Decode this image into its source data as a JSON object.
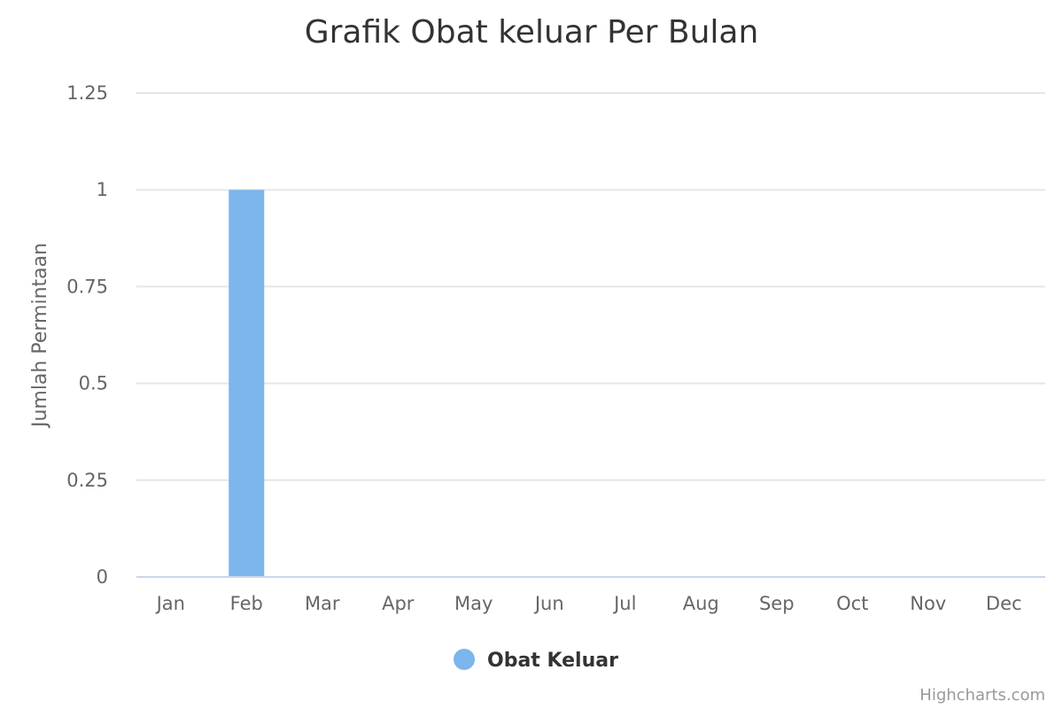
{
  "chart_data": {
    "type": "bar",
    "title": "Grafik Obat keluar Per Bulan",
    "xlabel": "",
    "ylabel": "Jumlah Permintaan",
    "categories": [
      "Jan",
      "Feb",
      "Mar",
      "Apr",
      "May",
      "Jun",
      "Jul",
      "Aug",
      "Sep",
      "Oct",
      "Nov",
      "Dec"
    ],
    "series": [
      {
        "name": "Obat Keluar",
        "values": [
          0,
          1,
          0,
          0,
          0,
          0,
          0,
          0,
          0,
          0,
          0,
          0
        ],
        "color": "#7cb5ec"
      }
    ],
    "ylim": [
      0,
      1.25
    ],
    "yticks": [
      "0",
      "0.25",
      "0.5",
      "0.75",
      "1",
      "1.25"
    ],
    "grid": true,
    "legend_position": "bottom-center"
  },
  "credits": "Highcharts.com"
}
